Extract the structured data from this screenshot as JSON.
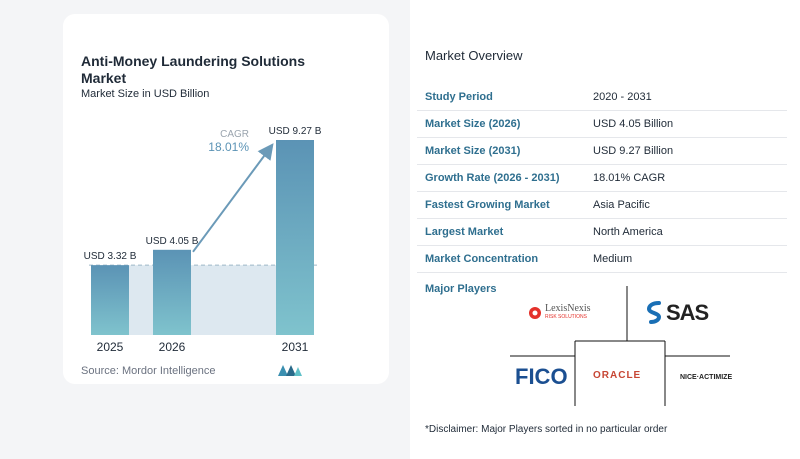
{
  "chart_data": {
    "type": "bar",
    "title": "Anti-Money Laundering Solutions Market",
    "subtitle": "Market Size in USD Billion",
    "categories": [
      "2025",
      "2026",
      "2031"
    ],
    "values": [
      3.32,
      4.05,
      9.27
    ],
    "data_labels": [
      "USD 3.32 B",
      "USD 4.05 B",
      "USD 9.27 B"
    ],
    "cagr_label": "CAGR",
    "cagr_value": "18.01%",
    "ylim": [
      0,
      9.27
    ],
    "colors": {
      "bar_top": "#5b93b5",
      "bar_bottom": "#7fc3cd",
      "arrow": "#6b9ab8",
      "band": "#dde8f0",
      "cagr_text": "#5b93b5"
    }
  },
  "source": "Source:  Mordor Intelligence",
  "overview": {
    "title": "Market Overview",
    "rows": [
      {
        "label": "Study Period",
        "value": "2020 - 2031"
      },
      {
        "label": "Market Size (2026)",
        "value": "USD 4.05 Billion"
      },
      {
        "label": "Market Size (2031)",
        "value": "USD 9.27 Billion"
      },
      {
        "label": "Growth Rate (2026 - 2031)",
        "value": "18.01% CAGR"
      },
      {
        "label": "Fastest Growing Market",
        "value": "Asia Pacific"
      },
      {
        "label": "Largest Market",
        "value": "North America"
      },
      {
        "label": "Market Concentration",
        "value": "Medium"
      }
    ]
  },
  "players": {
    "title": "Major Players",
    "logos": [
      "LexisNexis",
      "RISK SOLUTIONS",
      "SAS",
      "FICO",
      "ORACLE",
      "NICE·ACTIMIZE"
    ]
  },
  "disclaimer": "*Disclaimer: Major Players sorted in no particular order"
}
